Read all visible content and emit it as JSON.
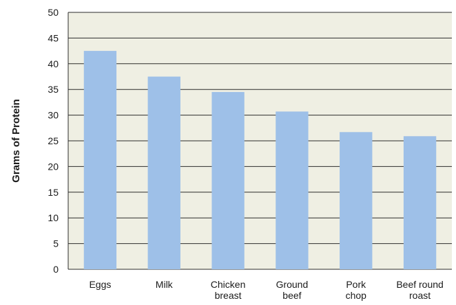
{
  "chart_data": {
    "type": "bar",
    "title": "",
    "xlabel": "",
    "ylabel": "Grams of Protein",
    "ylim": [
      0,
      50
    ],
    "yticks": [
      "0",
      "5",
      "10",
      "15",
      "20",
      "25",
      "30",
      "35",
      "40",
      "45",
      "50"
    ],
    "grid": true,
    "categories": [
      [
        "Eggs"
      ],
      [
        "Milk"
      ],
      [
        "Chicken",
        "breast"
      ],
      [
        "Ground",
        "beef"
      ],
      [
        "Pork",
        "chop"
      ],
      [
        "Beef round",
        "roast"
      ]
    ],
    "values": [
      42.5,
      37.5,
      34.5,
      30.7,
      26.7,
      25.9
    ],
    "colors": {
      "plot_background": "#efefe3",
      "bar": "#9ec0e8",
      "grid": "#2b2b2b",
      "axis": "#2b2b2b"
    }
  }
}
